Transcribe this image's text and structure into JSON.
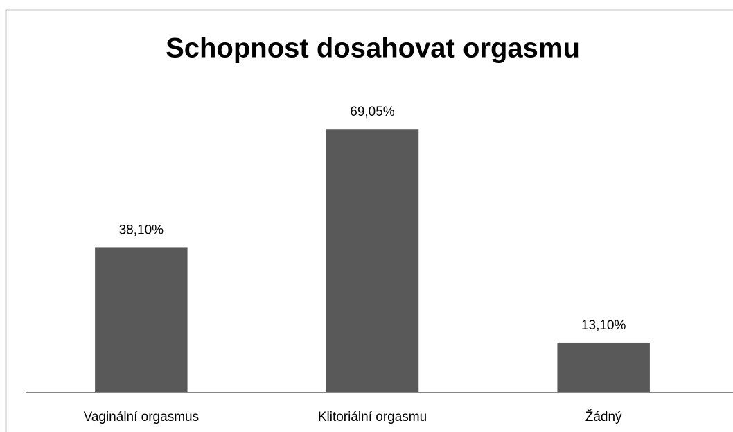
{
  "chart_data": {
    "type": "bar",
    "title": "Schopnost dosahovat orgasmu",
    "categories": [
      "Vaginální orgasmus",
      "Klitoriální orgasmu",
      "Žádný"
    ],
    "values": [
      38.1,
      69.05,
      13.1
    ],
    "value_labels": [
      "38,10%",
      "69,05%",
      "13,10%"
    ],
    "color": "#595959",
    "ylim": [
      0,
      80
    ]
  }
}
